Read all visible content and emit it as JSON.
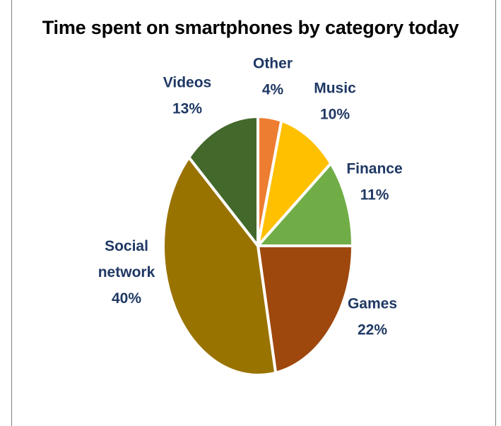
{
  "chart_data": {
    "type": "pie",
    "title": "Time spent on smartphones by category today",
    "slices": [
      {
        "name": "Other",
        "value": 4,
        "label_lines": [
          "Other",
          "4%"
        ],
        "color": "#ED7D31"
      },
      {
        "name": "Music",
        "value": 10,
        "label_lines": [
          "Music",
          "10%"
        ],
        "color": "#FFC000"
      },
      {
        "name": "Finance",
        "value": 11,
        "label_lines": [
          "Finance",
          "11%"
        ],
        "color": "#70AD47"
      },
      {
        "name": "Games",
        "value": 22,
        "label_lines": [
          "Games",
          "22%"
        ],
        "color": "#9E480E"
      },
      {
        "name": "Social network",
        "value": 40,
        "label_lines": [
          "Social",
          "network",
          "40%"
        ],
        "color": "#997300"
      },
      {
        "name": "Videos",
        "value": 13,
        "label_lines": [
          "Videos",
          "13%"
        ],
        "color": "#43682B"
      }
    ],
    "legend": "none",
    "label_color": "#1F3864"
  }
}
